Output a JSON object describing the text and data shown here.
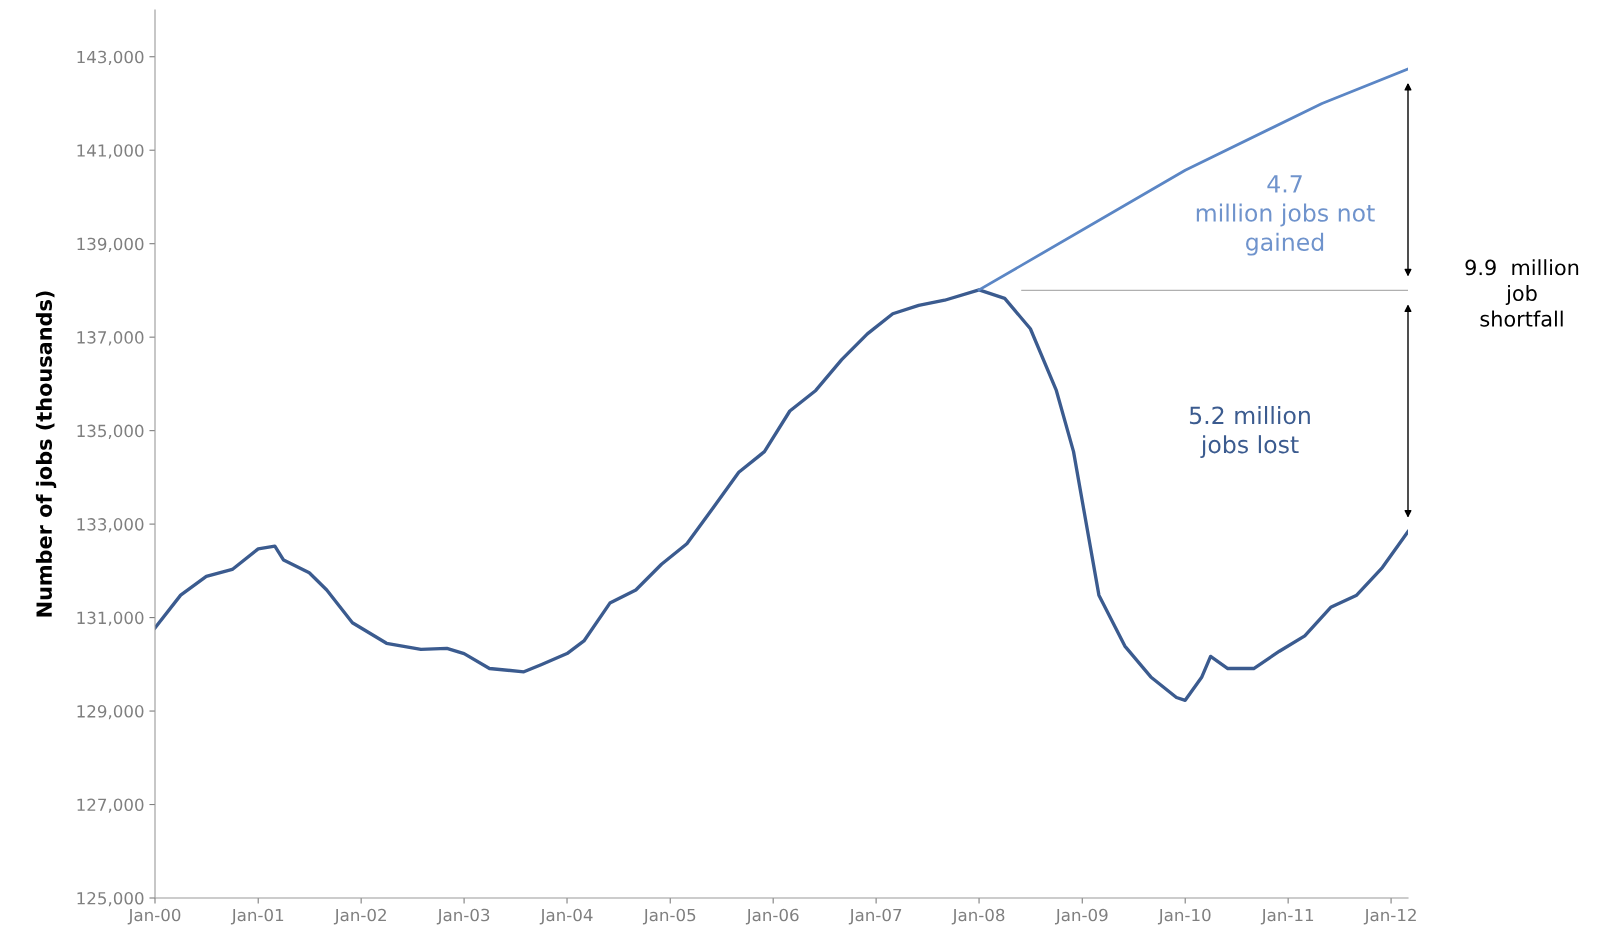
{
  "chart_data": {
    "type": "line",
    "ylabel": "Number of jobs (thousands)",
    "series": [
      {
        "color": "#3b5b8f",
        "x": [
          "2000-01",
          "2000-04",
          "2000-07",
          "2000-10",
          "2001-01",
          "2001-03",
          "2001-04",
          "2001-07",
          "2001-09",
          "2001-12",
          "2002-04",
          "2002-08",
          "2002-11",
          "2003-01",
          "2003-04",
          "2003-08",
          "2003-10",
          "2004-01",
          "2004-03",
          "2004-06",
          "2004-09",
          "2004-12",
          "2005-03",
          "2005-06",
          "2005-09",
          "2005-12",
          "2006-03",
          "2006-06",
          "2006-09",
          "2006-12",
          "2007-03",
          "2007-06",
          "2007-09",
          "2008-01",
          "2008-04",
          "2008-07",
          "2008-10",
          "2008-12",
          "2009-03",
          "2009-06",
          "2009-09",
          "2009-12",
          "2010-01",
          "2010-03",
          "2010-04",
          "2010-06",
          "2010-09",
          "2010-12",
          "2011-03",
          "2011-06",
          "2011-09",
          "2011-12",
          "2012-03"
        ],
        "values": [
          130780,
          131480,
          131880,
          132030,
          132470,
          132530,
          132230,
          131960,
          131590,
          130890,
          130450,
          130320,
          130340,
          130230,
          129910,
          129840,
          129990,
          130230,
          130500,
          131310,
          131590,
          132140,
          132580,
          133340,
          134110,
          134550,
          135420,
          135860,
          136520,
          137070,
          137500,
          137680,
          137790,
          138010,
          137830,
          137180,
          135860,
          134550,
          131480,
          130390,
          129730,
          129290,
          129230,
          129730,
          130170,
          129910,
          129910,
          130280,
          130610,
          131220,
          131480,
          132070,
          132840
        ]
      },
      {
        "color": "#5b86c5",
        "x": [
          "2008-01",
          "2010-01",
          "2011-05",
          "2012-03"
        ],
        "values": [
          138010,
          140570,
          142000,
          142740
        ]
      },
      {
        "color": "#b0b0b0",
        "x": [
          "2008-06",
          "2012-03"
        ],
        "values": [
          138000,
          138000
        ]
      }
    ],
    "xlim": [
      "2000-01",
      "2012-03"
    ],
    "xticks": [
      {
        "value": "2000-01",
        "label": "Jan-00"
      },
      {
        "value": "2001-01",
        "label": "Jan-01"
      },
      {
        "value": "2002-01",
        "label": "Jan-02"
      },
      {
        "value": "2003-01",
        "label": "Jan-03"
      },
      {
        "value": "2004-01",
        "label": "Jan-04"
      },
      {
        "value": "2005-01",
        "label": "Jan-05"
      },
      {
        "value": "2006-01",
        "label": "Jan-06"
      },
      {
        "value": "2007-01",
        "label": "Jan-07"
      },
      {
        "value": "2008-01",
        "label": "Jan-08"
      },
      {
        "value": "2009-01",
        "label": "Jan-09"
      },
      {
        "value": "2010-01",
        "label": "Jan-10"
      },
      {
        "value": "2011-01",
        "label": "Jan-11"
      },
      {
        "value": "2012-01",
        "label": "Jan-12"
      }
    ],
    "ylim": [
      125000,
      144000
    ],
    "yticks": [
      {
        "value": 125000,
        "label": "125,000"
      },
      {
        "value": 127000,
        "label": "127,000"
      },
      {
        "value": 129000,
        "label": "129,000"
      },
      {
        "value": 131000,
        "label": "131,000"
      },
      {
        "value": 133000,
        "label": "133,000"
      },
      {
        "value": 135000,
        "label": "135,000"
      },
      {
        "value": 137000,
        "label": "137,000"
      },
      {
        "value": 139000,
        "label": "139,000"
      },
      {
        "value": 141000,
        "label": "141,000"
      },
      {
        "value": 143000,
        "label": "143,000"
      }
    ],
    "annotations": [
      "4.7\nmillion jobs not\ngained",
      "5.2 million\njobs lost",
      "9.9  million\njob\nshortfall"
    ],
    "grid": false,
    "legend": false
  }
}
